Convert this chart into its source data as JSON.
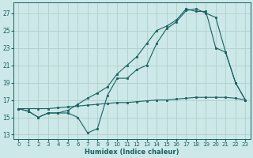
{
  "xlabel": "Humidex (Indice chaleur)",
  "bg_color": "#cce8e8",
  "grid_color": "#b0d0cc",
  "line_color": "#1a6060",
  "xlim": [
    -0.5,
    23.5
  ],
  "ylim": [
    12.5,
    28.2
  ],
  "xticks": [
    0,
    1,
    2,
    3,
    4,
    5,
    6,
    7,
    8,
    9,
    10,
    11,
    12,
    13,
    14,
    15,
    16,
    17,
    18,
    19,
    20,
    21,
    22,
    23
  ],
  "yticks": [
    13,
    15,
    17,
    19,
    21,
    23,
    25,
    27
  ],
  "line1_y": [
    16.0,
    15.7,
    15.0,
    15.5,
    15.5,
    15.5,
    15.0,
    13.2,
    13.7,
    17.5,
    19.5,
    19.5,
    20.5,
    21.0,
    23.5,
    25.2,
    26.0,
    27.3,
    27.5,
    27.0,
    26.5,
    22.5,
    19.0,
    17.0
  ],
  "line2_y": [
    16.0,
    15.7,
    15.0,
    15.5,
    15.5,
    15.8,
    16.5,
    17.2,
    17.8,
    18.5,
    20.0,
    21.0,
    22.0,
    23.5,
    25.0,
    25.5,
    26.2,
    27.5,
    27.2,
    27.2,
    23.0,
    22.5,
    19.0,
    17.0
  ],
  "line3_y": [
    16.0,
    16.0,
    16.0,
    16.0,
    16.1,
    16.2,
    16.3,
    16.4,
    16.5,
    16.6,
    16.7,
    16.7,
    16.8,
    16.9,
    17.0,
    17.0,
    17.1,
    17.2,
    17.3,
    17.3,
    17.3,
    17.3,
    17.2,
    17.0
  ]
}
